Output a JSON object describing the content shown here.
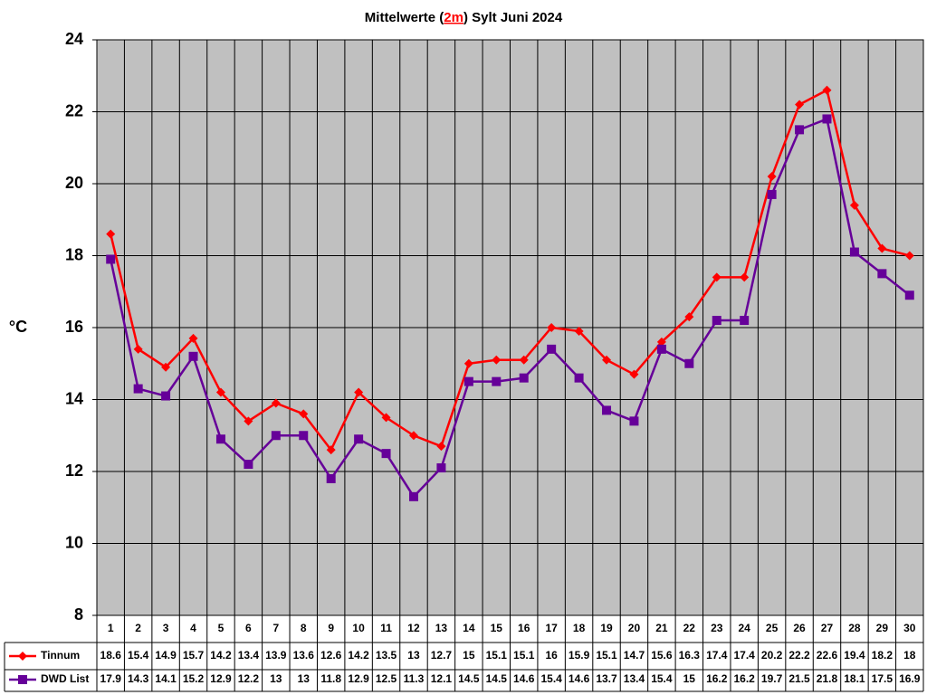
{
  "chart_data": {
    "type": "line",
    "title": [
      "Mittelwerte (",
      "2m",
      ") Sylt Juni 2024"
    ],
    "y_label": "°C",
    "categories": [
      1,
      2,
      3,
      4,
      5,
      6,
      7,
      8,
      9,
      10,
      11,
      12,
      13,
      14,
      15,
      16,
      17,
      18,
      19,
      20,
      21,
      22,
      23,
      24,
      25,
      26,
      27,
      28,
      29,
      30
    ],
    "series": [
      {
        "name": "Tinnum",
        "color": "#ff0000",
        "marker": "diamond",
        "values": [
          18.6,
          15.4,
          14.9,
          15.7,
          14.2,
          13.4,
          13.9,
          13.6,
          12.6,
          14.2,
          13.5,
          13,
          12.7,
          15,
          15.1,
          15.1,
          16,
          15.9,
          15.1,
          14.7,
          15.6,
          16.3,
          17.4,
          17.4,
          20.2,
          22.2,
          22.6,
          19.4,
          18.2,
          18
        ]
      },
      {
        "name": "DWD List",
        "color": "#660099",
        "marker": "square",
        "values": [
          17.9,
          14.3,
          14.1,
          15.2,
          12.9,
          12.2,
          13,
          13,
          11.8,
          12.9,
          12.5,
          11.3,
          12.1,
          14.5,
          14.5,
          14.6,
          15.4,
          14.6,
          13.7,
          13.4,
          15.4,
          15,
          16.2,
          16.2,
          19.7,
          21.5,
          21.8,
          18.1,
          17.5,
          16.9
        ]
      }
    ],
    "ylim": [
      8,
      24
    ],
    "yticks": [
      8,
      10,
      12,
      14,
      16,
      18,
      20,
      22,
      24
    ],
    "grid": true,
    "data_table": true
  }
}
